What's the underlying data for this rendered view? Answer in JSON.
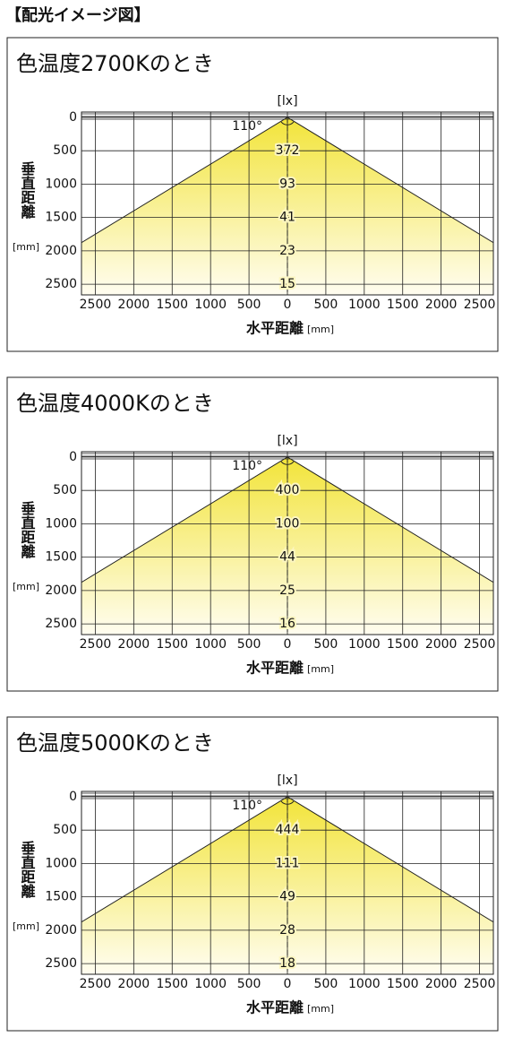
{
  "header": "【配光イメージ図】",
  "chart_data": [
    {
      "type": "light-distribution",
      "title": "色温度2700Kのとき",
      "unit": "[lx]",
      "beam_angle": {
        "value": 110,
        "label": "110°"
      },
      "depths": [
        500,
        1000,
        1500,
        2000,
        2500
      ],
      "values": [
        372,
        93,
        41,
        23,
        15
      ],
      "xlim": [
        -2680,
        2680
      ],
      "ylim": [
        2660,
        -80
      ],
      "xticks": [
        {
          "value": -2500,
          "label": "2500"
        },
        {
          "value": -2000,
          "label": "2000"
        },
        {
          "value": -1500,
          "label": "1500"
        },
        {
          "value": -1000,
          "label": "1000"
        },
        {
          "value": -500,
          "label": "500"
        },
        0,
        500,
        1000,
        1500,
        2000,
        2500
      ],
      "yticks": [
        0,
        500,
        1000,
        1500,
        2000,
        2500
      ],
      "xlabel": "水平距離",
      "xlabel_unit": "[mm]",
      "ylabel": "垂直距離",
      "ylabel_unit": "[mm]",
      "grid": true,
      "color": "#f2e43a"
    },
    {
      "type": "light-distribution",
      "title": "色温度4000Kのとき",
      "unit": "[lx]",
      "beam_angle": {
        "value": 110,
        "label": "110°"
      },
      "depths": [
        500,
        1000,
        1500,
        2000,
        2500
      ],
      "values": [
        400,
        100,
        44,
        25,
        16
      ],
      "xlim": [
        -2680,
        2680
      ],
      "ylim": [
        2660,
        -80
      ],
      "xticks": [
        {
          "value": -2500,
          "label": "2500"
        },
        {
          "value": -2000,
          "label": "2000"
        },
        {
          "value": -1500,
          "label": "1500"
        },
        {
          "value": -1000,
          "label": "1000"
        },
        {
          "value": -500,
          "label": "500"
        },
        0,
        500,
        1000,
        1500,
        2000,
        2500
      ],
      "yticks": [
        0,
        500,
        1000,
        1500,
        2000,
        2500
      ],
      "xlabel": "水平距離",
      "xlabel_unit": "[mm]",
      "ylabel": "垂直距離",
      "ylabel_unit": "[mm]",
      "grid": true,
      "color": "#f2e43a"
    },
    {
      "type": "light-distribution",
      "title": "色温度5000Kのとき",
      "unit": "[lx]",
      "beam_angle": {
        "value": 110,
        "label": "110°"
      },
      "depths": [
        500,
        1000,
        1500,
        2000,
        2500
      ],
      "values": [
        444,
        111,
        49,
        28,
        18
      ],
      "xlim": [
        -2680,
        2680
      ],
      "ylim": [
        2660,
        -80
      ],
      "xticks": [
        {
          "value": -2500,
          "label": "2500"
        },
        {
          "value": -2000,
          "label": "2000"
        },
        {
          "value": -1500,
          "label": "1500"
        },
        {
          "value": -1000,
          "label": "1000"
        },
        {
          "value": -500,
          "label": "500"
        },
        0,
        500,
        1000,
        1500,
        2000,
        2500
      ],
      "yticks": [
        0,
        500,
        1000,
        1500,
        2000,
        2500
      ],
      "xlabel": "水平距離",
      "xlabel_unit": "[mm]",
      "ylabel": "垂直距離",
      "ylabel_unit": "[mm]",
      "grid": true,
      "color": "#f2e43a"
    }
  ]
}
